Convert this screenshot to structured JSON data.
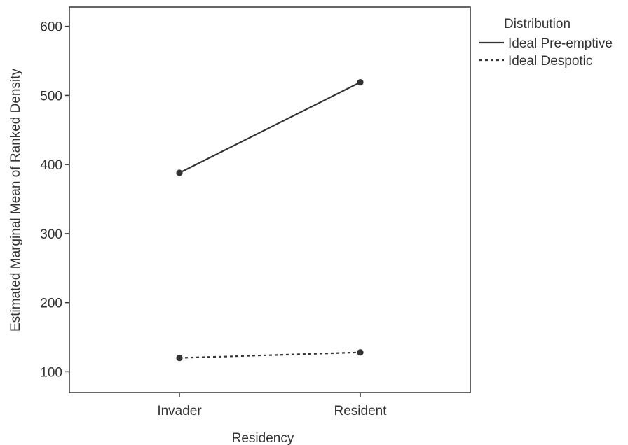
{
  "chart_data": {
    "type": "line",
    "title": "",
    "xlabel": "Residency",
    "ylabel": "Estimated Marginal Mean of Ranked Density",
    "categories": [
      "Invader",
      "Resident"
    ],
    "ylim": [
      70,
      628
    ],
    "yticks": [
      100,
      200,
      300,
      400,
      500,
      600
    ],
    "grid": false,
    "legend": {
      "title": "Distribution",
      "position": "top-right outside plot",
      "entries": [
        "Ideal Pre-emptive",
        "Ideal Despotic"
      ]
    },
    "series": [
      {
        "name": "Ideal Pre-emptive",
        "values": [
          388,
          519
        ],
        "line_style": "solid",
        "color": "#333333"
      },
      {
        "name": "Ideal Despotic",
        "values": [
          120,
          128
        ],
        "line_style": "dashed",
        "color": "#333333"
      }
    ]
  }
}
